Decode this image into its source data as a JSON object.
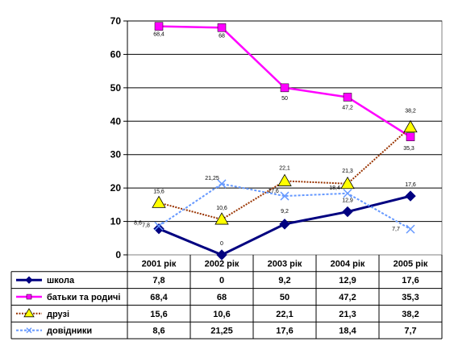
{
  "chart_data": {
    "type": "line",
    "categories": [
      "2001 рік",
      "2002 рік",
      "2003 рік",
      "2004 рік",
      "2005 рік"
    ],
    "ylim": [
      0,
      70
    ],
    "yticks": [
      "0",
      "10",
      "20",
      "30",
      "40",
      "50",
      "60",
      "70"
    ],
    "grid": true,
    "legend": "data-table-bottom",
    "series": [
      {
        "name": "школа",
        "values": [
          7.8,
          0,
          9.2,
          12.9,
          17.6
        ],
        "labels": [
          "7,8",
          "0",
          "9,2",
          "12,9",
          "17,6"
        ],
        "table": [
          "7,8",
          "0",
          "9,2",
          "12,9",
          "17,6"
        ],
        "color": "#000080",
        "marker": "diamond"
      },
      {
        "name": "батьки та родичі",
        "values": [
          68.4,
          68,
          50,
          47.2,
          35.3
        ],
        "labels": [
          "68,4",
          "68",
          "50",
          "47,2",
          "35,3"
        ],
        "table": [
          "68,4",
          "68",
          "50",
          "47,2",
          "35,3"
        ],
        "color": "#ff00ff",
        "marker": "square"
      },
      {
        "name": "друзі",
        "values": [
          15.6,
          10.6,
          22.1,
          21.3,
          38.2
        ],
        "labels": [
          "15,6",
          "10,6",
          "22,1",
          "21,3",
          "38,2"
        ],
        "table": [
          "15,6",
          "10,6",
          "22,1",
          "21,3",
          "38,2"
        ],
        "color": "#993300",
        "marker": "triangle"
      },
      {
        "name": "довідники",
        "values": [
          8.6,
          21.25,
          17.6,
          18.4,
          7.7
        ],
        "labels": [
          "8,6",
          "21,25",
          "17,6",
          "18,4",
          "7,7"
        ],
        "table": [
          "8,6",
          "21,25",
          "17,6",
          "18,4",
          "7,7"
        ],
        "color": "#6699ff",
        "marker": "x"
      }
    ]
  }
}
